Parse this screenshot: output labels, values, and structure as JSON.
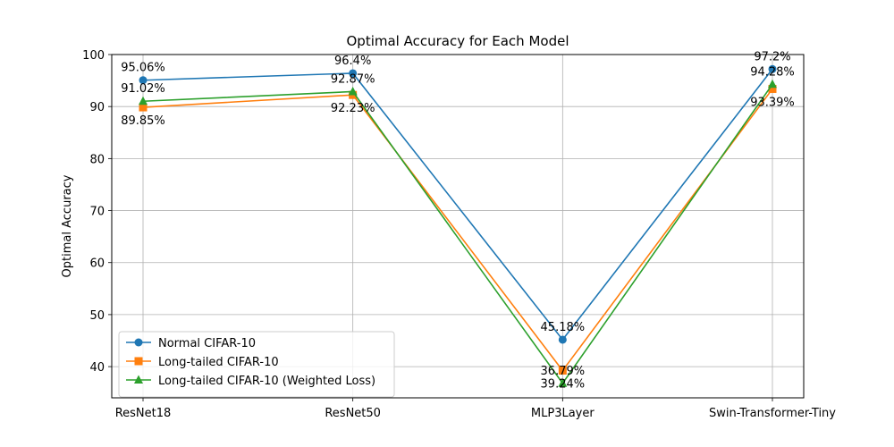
{
  "chart_data": {
    "type": "line",
    "title": "Optimal Accuracy for Each Model",
    "xlabel": "",
    "ylabel": "Optimal Accuracy",
    "categories": [
      "ResNet18",
      "ResNet50",
      "MLP3Layer",
      "Swin-Transformer-Tiny"
    ],
    "ylim": [
      34,
      100
    ],
    "yticks": [
      40,
      50,
      60,
      70,
      80,
      90,
      100
    ],
    "grid": true,
    "legend_position": "lower-left",
    "series": [
      {
        "name": "Normal CIFAR-10",
        "color": "#1f77b4",
        "marker": "circle",
        "values": [
          95.06,
          96.4,
          45.18,
          97.2
        ],
        "labels": [
          "95.06%",
          "96.4%",
          "45.18%",
          "97.2%"
        ]
      },
      {
        "name": "Long-tailed CIFAR-10",
        "color": "#ff7f0e",
        "marker": "square",
        "values": [
          89.85,
          92.23,
          39.24,
          93.39
        ],
        "labels": [
          "89.85%",
          "92.23%",
          "39.24%",
          "93.39%"
        ]
      },
      {
        "name": "Long-tailed CIFAR-10 (Weighted Loss)",
        "color": "#2ca02c",
        "marker": "triangle",
        "values": [
          91.02,
          92.87,
          36.79,
          94.28
        ],
        "labels": [
          "91.02%",
          "92.87%",
          "36.79%",
          "94.28%"
        ]
      }
    ]
  }
}
